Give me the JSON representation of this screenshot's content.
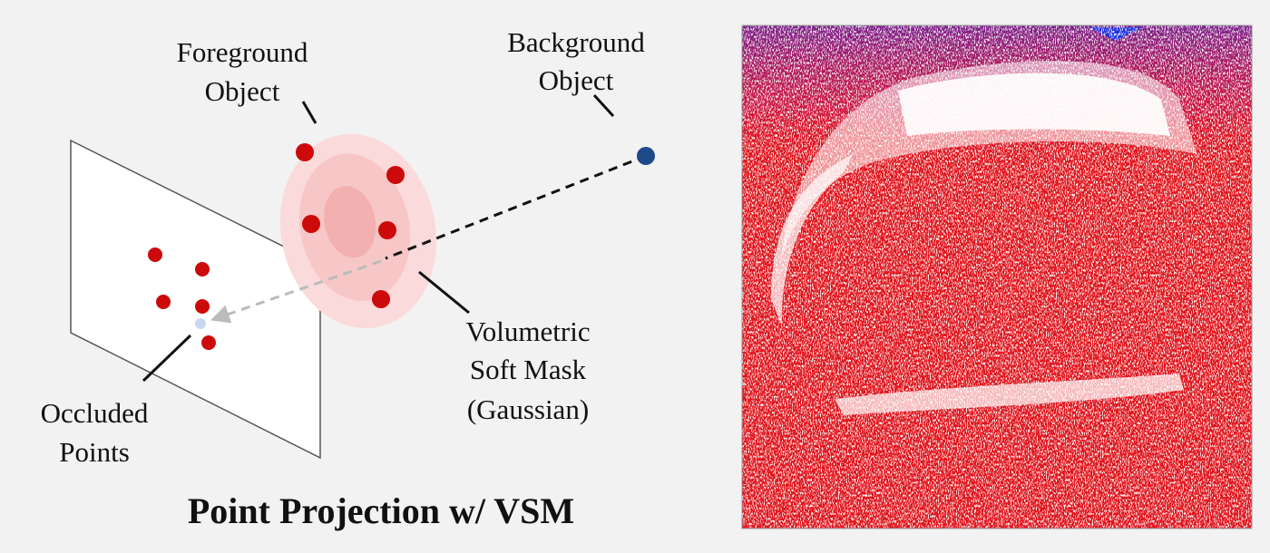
{
  "labels": {
    "foreground": [
      "Foreground",
      "Object"
    ],
    "background": [
      "Background",
      "Object"
    ],
    "mask": [
      "Volumetric",
      "Soft Mask",
      "(Gaussian)"
    ],
    "occluded": [
      "Occluded",
      "Points"
    ]
  },
  "caption": "Point Projection w/ VSM"
}
